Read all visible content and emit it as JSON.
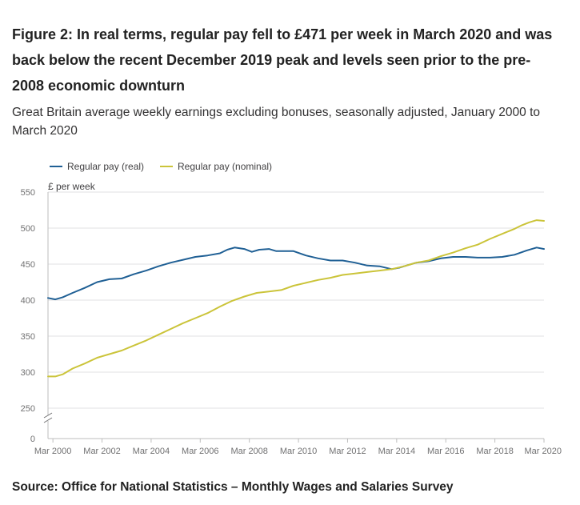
{
  "figure": {
    "title": "Figure 2: In real terms, regular pay fell to £471 per week in March 2020 and was back below the recent December 2019 peak and levels seen prior to the pre-2008 economic downturn",
    "subtitle": "Great Britain average weekly earnings excluding bonuses, seasonally adjusted, January 2000 to March 2020",
    "source": "Source: Office for National Statistics – Monthly Wages and Salaries Survey"
  },
  "chart_data": {
    "type": "line",
    "title": "Figure 2: In real terms, regular pay fell to £471 per week in March 2020 and was back below the recent December 2019 peak and levels seen prior to the pre-2008 economic downturn",
    "subtitle": "Great Britain average weekly earnings excluding bonuses, seasonally adjusted, January 2000 to March 2020",
    "xlabel": "",
    "ylabel": "£ per week",
    "xlim": [
      2000.0,
      2020.2
    ],
    "ylim": [
      0,
      550
    ],
    "axis_break": [
      0,
      250
    ],
    "yticks": [
      0,
      250,
      300,
      350,
      400,
      450,
      500,
      550
    ],
    "ytick_labels": [
      "0",
      "250",
      "300",
      "350",
      "400",
      "450",
      "500",
      "550"
    ],
    "xticks": [
      2000.2,
      2002.2,
      2004.2,
      2006.2,
      2008.2,
      2010.2,
      2012.2,
      2014.2,
      2016.2,
      2018.2,
      2020.2
    ],
    "xtick_labels": [
      "Mar 2000",
      "Mar 2002",
      "Mar 2004",
      "Mar 2006",
      "Mar 2008",
      "Mar 2010",
      "Mar 2012",
      "Mar 2014",
      "Mar 2016",
      "Mar 2018",
      "Mar 2020"
    ],
    "grid": true,
    "legend_position": "top-left",
    "series": [
      {
        "name": "Regular pay (real)",
        "color": "#206095",
        "x": [
          2000.0,
          2000.3,
          2000.6,
          2001.0,
          2001.5,
          2002.0,
          2002.5,
          2003.0,
          2003.5,
          2004.0,
          2004.5,
          2005.0,
          2005.5,
          2006.0,
          2006.5,
          2007.0,
          2007.3,
          2007.6,
          2008.0,
          2008.3,
          2008.6,
          2009.0,
          2009.3,
          2009.6,
          2010.0,
          2010.5,
          2011.0,
          2011.5,
          2012.0,
          2012.5,
          2013.0,
          2013.5,
          2014.0,
          2014.3,
          2014.6,
          2015.0,
          2015.5,
          2016.0,
          2016.5,
          2017.0,
          2017.5,
          2018.0,
          2018.5,
          2019.0,
          2019.5,
          2019.9,
          2020.2
        ],
        "values": [
          403,
          401,
          404,
          410,
          417,
          425,
          429,
          430,
          436,
          441,
          447,
          452,
          456,
          460,
          462,
          465,
          470,
          473,
          471,
          467,
          470,
          471,
          468,
          468,
          468,
          462,
          458,
          455,
          455,
          452,
          448,
          447,
          443,
          445,
          448,
          452,
          454,
          458,
          460,
          460,
          459,
          459,
          460,
          463,
          469,
          473,
          471
        ]
      },
      {
        "name": "Regular pay (nominal)",
        "color": "#cbc43a",
        "x": [
          2000.0,
          2000.3,
          2000.6,
          2001.0,
          2001.5,
          2002.0,
          2002.5,
          2003.0,
          2003.5,
          2004.0,
          2004.5,
          2005.0,
          2005.5,
          2006.0,
          2006.5,
          2007.0,
          2007.5,
          2008.0,
          2008.5,
          2009.0,
          2009.5,
          2010.0,
          2010.5,
          2011.0,
          2011.5,
          2012.0,
          2012.5,
          2013.0,
          2013.5,
          2014.0,
          2014.5,
          2015.0,
          2015.5,
          2016.0,
          2016.5,
          2017.0,
          2017.5,
          2018.0,
          2018.5,
          2019.0,
          2019.3,
          2019.6,
          2019.9,
          2020.2
        ],
        "values": [
          294,
          294,
          297,
          305,
          312,
          320,
          325,
          330,
          337,
          344,
          352,
          360,
          368,
          375,
          382,
          391,
          399,
          405,
          410,
          412,
          414,
          420,
          424,
          428,
          431,
          435,
          437,
          439,
          441,
          443,
          447,
          452,
          455,
          461,
          466,
          472,
          477,
          485,
          492,
          499,
          504,
          508,
          511,
          510
        ]
      }
    ]
  }
}
